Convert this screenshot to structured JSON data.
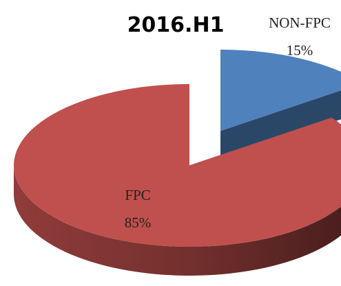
{
  "chart_data": {
    "type": "pie",
    "title": "2016.H1",
    "categories": [
      "NON-FPC",
      "FPC"
    ],
    "values": [
      15,
      85
    ],
    "value_labels": [
      "15%",
      "85%"
    ],
    "colors": [
      "#4f81bd",
      "#c0504d"
    ],
    "exploded": "NON-FPC",
    "style": "3d"
  }
}
